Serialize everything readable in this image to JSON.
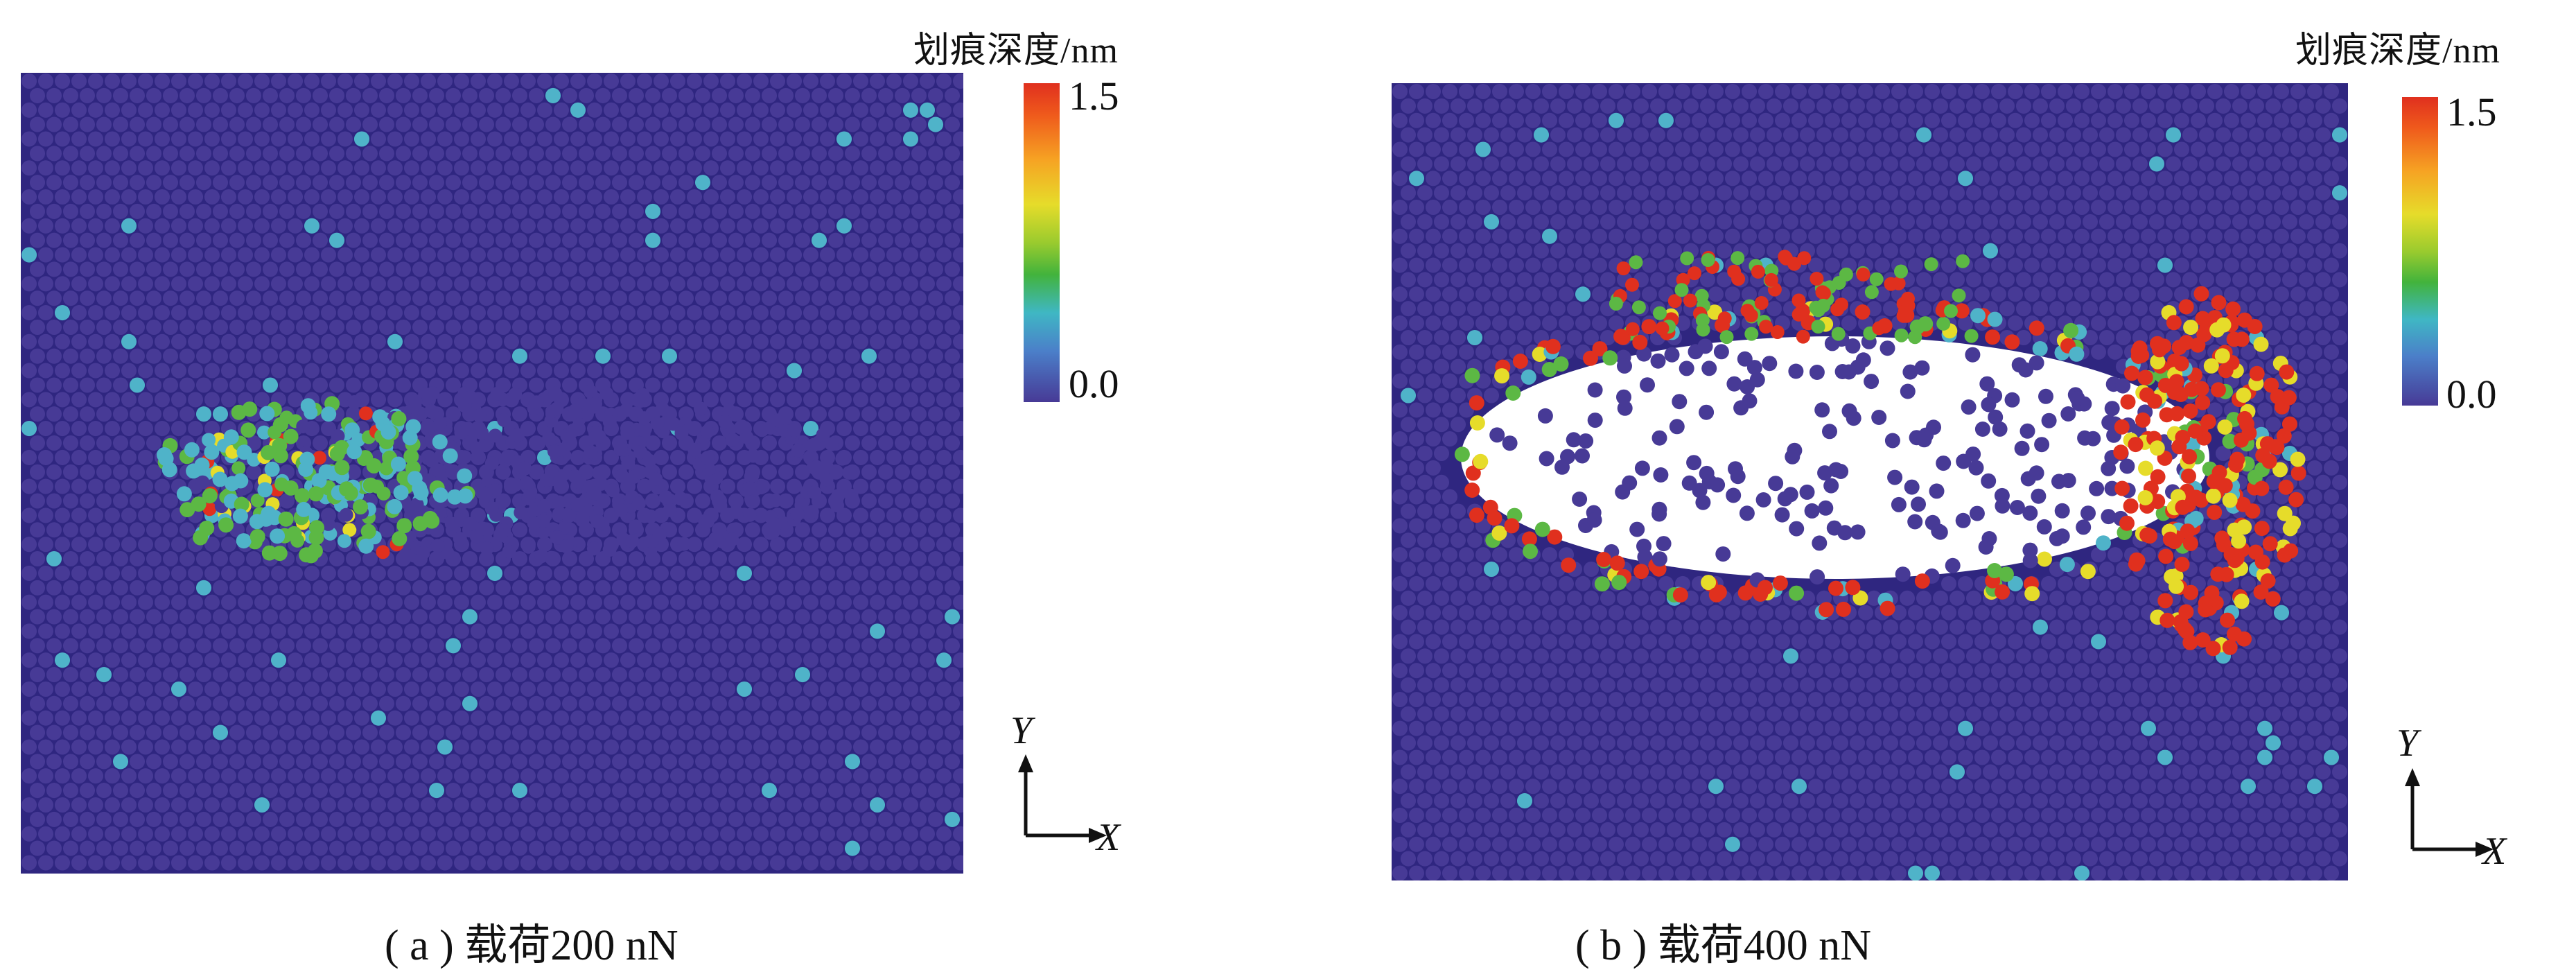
{
  "panels": [
    {
      "colorbar": {
        "title": "划痕深度/nm",
        "max_label": "1.5",
        "min_label": "0.0"
      },
      "axes": {
        "x_label": "X",
        "y_label": "Y"
      },
      "caption": {
        "prefix": "( a )",
        "text": "载荷200 nN"
      }
    },
    {
      "colorbar": {
        "title": "划痕深度/nm",
        "max_label": "1.5",
        "min_label": "0.0"
      },
      "axes": {
        "x_label": "X",
        "y_label": "Y"
      },
      "caption": {
        "prefix": "( b )",
        "text": "载荷400 nN"
      }
    }
  ],
  "colors": {
    "background_atom": "#473a96",
    "shallow_atom": "#4fb3c9",
    "medium_atom": "#5cb844",
    "deep_atom": "#e0301e",
    "yellow_atom": "#e6dc2a"
  }
}
